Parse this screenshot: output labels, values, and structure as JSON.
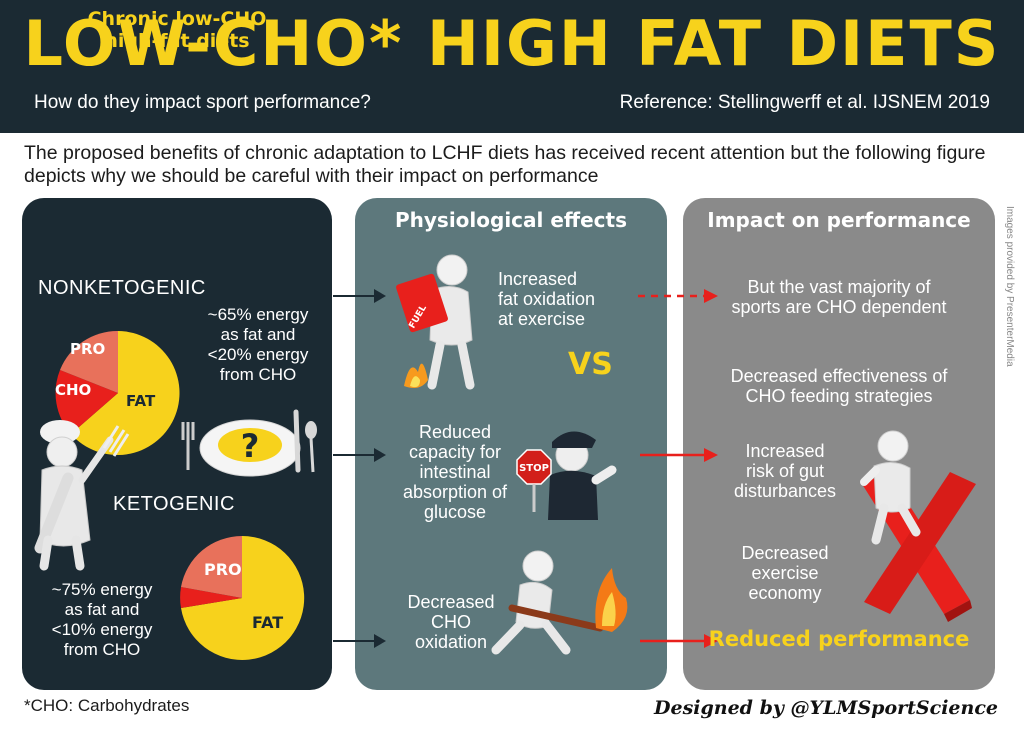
{
  "header": {
    "title": "LOW-CHO* HIGH FAT DIETS",
    "subtitle": "How do they impact sport performance?",
    "reference": "Reference: Stellingwerff et al. IJSNEM 2019"
  },
  "intro": "The proposed benefits of chronic adaptation to LCHF diets has received recent attention but the following figure depicts why we should be careful with their impact on performance",
  "left_panel": {
    "heading_line1": "Chronic low-CHO",
    "heading_line2": "high-fat diets",
    "nonketogenic": {
      "label": "NONKETOGENIC",
      "desc": [
        "~65% energy",
        "as fat and",
        "<20% energy",
        "from CHO"
      ],
      "pie_labels": {
        "pro": "PRO",
        "cho": "CHO",
        "fat": "FAT"
      }
    },
    "ketogenic": {
      "label": "KETOGENIC",
      "desc": [
        "~75% energy",
        "as fat and",
        "<10% energy",
        "from CHO"
      ],
      "pie_labels": {
        "pro": "PRO",
        "fat": "FAT"
      }
    },
    "plate_symbol": "?"
  },
  "middle_panel": {
    "heading": "Physiological effects",
    "effect1": [
      "Increased",
      "fat oxidation",
      "at exercise"
    ],
    "vs": "VS",
    "effect2": [
      "Reduced",
      "capacity for",
      "intestinal",
      "absorption of",
      "glucose"
    ],
    "effect3": [
      "Decreased",
      "CHO",
      "oxidation"
    ],
    "fuel_label": "FUEL",
    "stop_label": "STOP"
  },
  "right_panel": {
    "heading": "Impact on performance",
    "impact1": [
      "But the vast majority of",
      "sports are CHO dependent"
    ],
    "impact2": [
      "Decreased effectiveness of",
      "CHO feeding strategies"
    ],
    "impact3": [
      "Increased",
      "risk of gut",
      "disturbances"
    ],
    "impact4": [
      "Decreased",
      "exercise",
      "economy"
    ],
    "conclusion": "Reduced performance"
  },
  "credit": "Images provided by PresenterMedia",
  "footnote": "*CHO: Carbohydrates",
  "designed_by": "Designed by @YLMSportScience",
  "colors": {
    "navy": "#1b2a33",
    "yellow": "#f7d21c",
    "teal": "#5d787c",
    "gray": "#8a8a8a",
    "red": "#e8201c",
    "salmon": "#e8715b"
  }
}
